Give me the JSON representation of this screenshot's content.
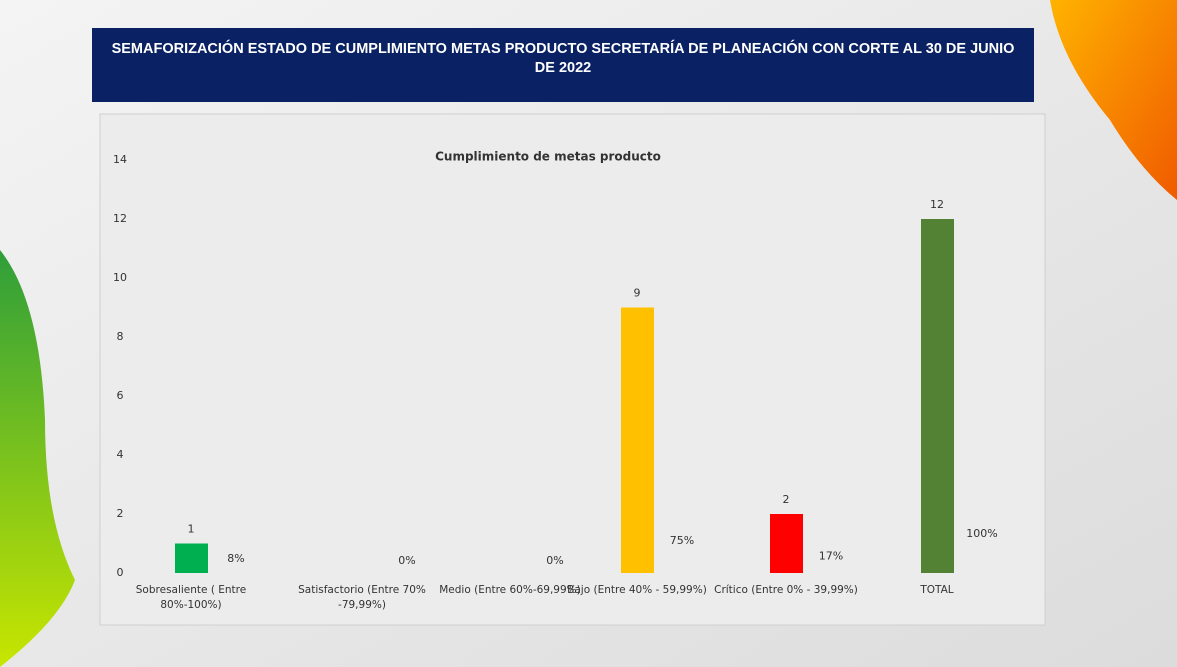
{
  "slide_title": "SEMAFORIZACIÓN ESTADO DE CUMPLIMIENTO METAS PRODUCTO  SECRETARÍA DE PLANEACIÓN CON CORTE AL 30 DE JUNIO DE 2022",
  "chart_data": {
    "type": "bar",
    "title": "Cumplimiento de  metas producto",
    "categories": [
      "Sobresaliente  ( Entre 80%-100%)",
      "Satisfactorio (Entre 70% -79,99%)",
      "Medio (Entre 60%-69,99%)",
      "Bajo (Entre 40% - 59,99%)",
      "Crítico (Entre 0% - 39,99%)",
      "TOTAL"
    ],
    "values": [
      1,
      0,
      0,
      9,
      2,
      12
    ],
    "colors": [
      "#00b050",
      null,
      null,
      "#ffc000",
      "#ff0000",
      "#548235"
    ],
    "percentages": [
      8,
      0,
      0,
      75,
      17,
      100
    ],
    "percentage_labels": [
      "8%",
      "0%",
      "0%",
      "75%",
      "17%",
      "100%"
    ],
    "ylim": [
      0,
      14
    ],
    "yticks": [
      0,
      2,
      4,
      6,
      8,
      10,
      12,
      14
    ],
    "grid": false
  }
}
